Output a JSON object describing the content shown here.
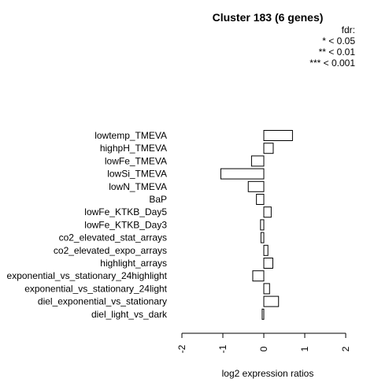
{
  "chart_data": {
    "type": "bar",
    "orientation": "horizontal",
    "title": "Cluster 183 (6 genes)",
    "xlabel": "log2 expression ratios",
    "xlim": [
      -2,
      2
    ],
    "xticks": [
      "-2",
      "-1",
      "0",
      "1",
      "2"
    ],
    "legend": {
      "title": "fdr:",
      "entries": [
        "* < 0.05",
        "** < 0.01",
        "*** < 0.001"
      ],
      "position": "top-right"
    },
    "categories": [
      "lowtemp_TMEVA",
      "highpH_TMEVA",
      "lowFe_TMEVA",
      "lowSi_TMEVA",
      "lowN_TMEVA",
      "BaP",
      "lowFe_KTKB_Day5",
      "lowFe_KTKB_Day3",
      "co2_elevated_stat_arrays",
      "co2_elevated_expo_arrays",
      "highlight_arrays",
      "exponential_vs_stationary_24highlight",
      "exponential_vs_stationary_24light",
      "diel_exponential_vs_stationary",
      "diel_light_vs_dark"
    ],
    "values": [
      0.7,
      0.23,
      -0.3,
      -1.05,
      -0.38,
      -0.18,
      0.18,
      -0.08,
      -0.07,
      0.1,
      0.22,
      -0.27,
      0.14,
      0.36,
      -0.04
    ],
    "bar_fill": "#ffffff",
    "bar_stroke": "#000000"
  }
}
